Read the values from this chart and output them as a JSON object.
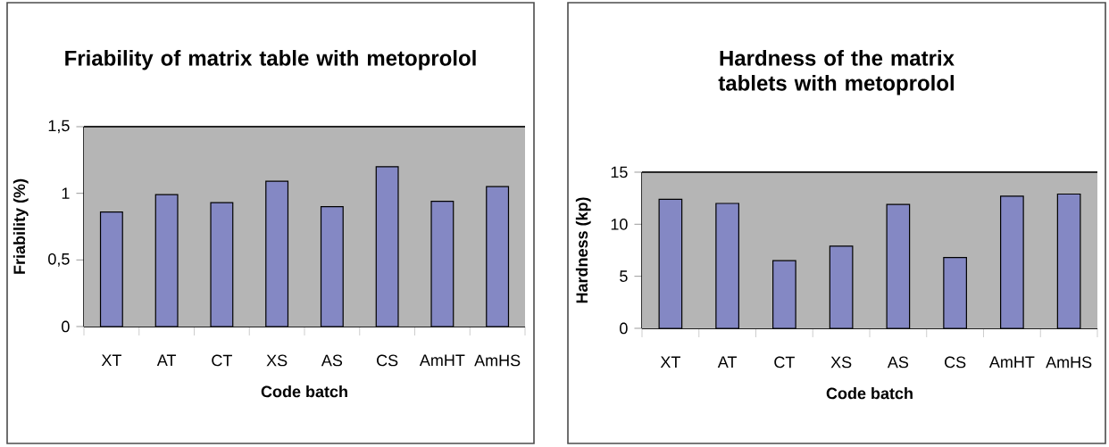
{
  "chart_data": [
    {
      "type": "bar",
      "title": "Friability of matrix table with metoprolol",
      "xlabel": "Code batch",
      "ylabel": "Friability (%)",
      "categories": [
        "XT",
        "AT",
        "CT",
        "XS",
        "AS",
        "CS",
        "AmHT",
        "AmHS"
      ],
      "values": [
        0.86,
        0.99,
        0.93,
        1.09,
        0.9,
        1.2,
        0.94,
        1.05
      ],
      "color": "#8488c4",
      "ylim": [
        0,
        1.5
      ],
      "yticks": [
        0,
        {
          "value": 0.5,
          "label": "0,5"
        },
        1,
        {
          "value": 1.5,
          "label": "1,5"
        }
      ],
      "grid": "y"
    },
    {
      "type": "bar",
      "title": "Hardness of the matrix tablets with metoprolol",
      "xlabel": "Code batch",
      "ylabel": "Hardness (kp)",
      "categories": [
        "XT",
        "AT",
        "CT",
        "XS",
        "AS",
        "CS",
        "AmHT",
        "AmHS"
      ],
      "values": [
        12.4,
        12.0,
        6.5,
        7.9,
        11.9,
        6.8,
        12.7,
        12.9
      ],
      "color": "#8488c4",
      "ylim": [
        0,
        15
      ],
      "yticks": [
        0,
        5,
        10,
        15
      ],
      "grid": "y"
    }
  ]
}
